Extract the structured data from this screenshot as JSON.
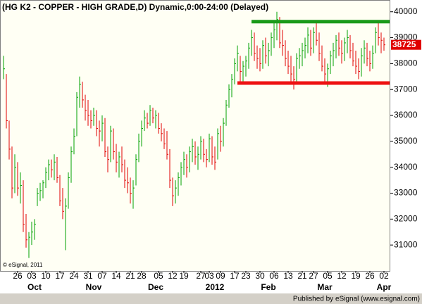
{
  "chart_data": {
    "type": "hlc",
    "title": "(HG K2 - COPPER - HIGH GRADE,D) Dynamic,0:00-24:00 (Delayed)",
    "watermark": "© eSignal, 2011",
    "footer": "Published by eSignal (www.esignal.com)",
    "categories": [
      null,
      null,
      null,
      null,
      null,
      "26",
      null,
      null,
      null,
      null,
      "03",
      null,
      null,
      null,
      null,
      "10",
      null,
      null,
      null,
      null,
      "17",
      null,
      null,
      null,
      null,
      "24",
      null,
      null,
      null,
      null,
      "31",
      null,
      null,
      null,
      null,
      "07",
      null,
      null,
      null,
      null,
      "14",
      null,
      null,
      null,
      null,
      "21",
      null,
      null,
      null,
      "28",
      null,
      null,
      null,
      null,
      null,
      "05",
      null,
      null,
      null,
      null,
      "12",
      null,
      null,
      null,
      "19",
      null,
      null,
      null,
      null,
      null,
      "27",
      null,
      null,
      "03",
      null,
      null,
      null,
      "09",
      null,
      null,
      null,
      null,
      "17",
      null,
      null,
      null,
      "23",
      null,
      null,
      null,
      null,
      "30",
      null,
      null,
      null,
      null,
      "06",
      null,
      null,
      null,
      null,
      "13",
      null,
      null,
      null,
      null,
      "21",
      null,
      null,
      null,
      "27",
      null,
      null,
      null,
      null,
      "05",
      null,
      null,
      null,
      null,
      "12",
      null,
      null,
      null,
      null,
      "19",
      null,
      null,
      null,
      null,
      "26",
      null,
      null,
      null,
      null,
      "02"
    ],
    "category_groups": [
      null,
      null,
      null,
      null,
      null,
      null,
      null,
      null,
      null,
      null,
      null,
      "Oct",
      null,
      null,
      null,
      null,
      null,
      null,
      null,
      null,
      null,
      null,
      null,
      null,
      null,
      null,
      null,
      null,
      null,
      null,
      null,
      null,
      "Nov",
      null,
      null,
      null,
      null,
      null,
      null,
      null,
      null,
      null,
      null,
      null,
      null,
      null,
      null,
      null,
      null,
      null,
      null,
      null,
      null,
      null,
      "Dec",
      null,
      null,
      null,
      null,
      null,
      null,
      null,
      null,
      null,
      null,
      null,
      null,
      null,
      null,
      null,
      null,
      null,
      null,
      null,
      null,
      "2012",
      null,
      null,
      null,
      null,
      null,
      null,
      null,
      null,
      null,
      null,
      null,
      null,
      null,
      null,
      null,
      null,
      null,
      null,
      "Feb",
      null,
      null,
      null,
      null,
      null,
      null,
      null,
      null,
      null,
      null,
      null,
      null,
      null,
      null,
      null,
      null,
      null,
      null,
      null,
      "Mar",
      null,
      null,
      null,
      null,
      null,
      null,
      null,
      null,
      null,
      null,
      null,
      null,
      null,
      null,
      null,
      null,
      null,
      null,
      null,
      null,
      "Apr"
    ],
    "high": [
      38300,
      37600,
      35800,
      34800,
      34500,
      34200,
      33800,
      33500,
      32200,
      31500,
      31900,
      32000,
      33200,
      33400,
      33500,
      34000,
      34300,
      34300,
      34500,
      34400,
      33700,
      33200,
      32800,
      33800,
      34800,
      35500,
      36900,
      37500,
      37300,
      36800,
      36600,
      36200,
      36300,
      36200,
      35800,
      36000,
      35900,
      34800,
      35600,
      35500,
      34900,
      34600,
      34800,
      34300,
      34000,
      33600,
      33500,
      34500,
      35300,
      35800,
      36200,
      36100,
      36400,
      36300,
      36200,
      36100,
      35700,
      35500,
      35400,
      34700,
      33600,
      33500,
      33800,
      34200,
      34600,
      34500,
      34800,
      35100,
      35000,
      34800,
      35200,
      35100,
      34700,
      35300,
      35200,
      34800,
      35500,
      35600,
      35900,
      36600,
      37200,
      37600,
      38200,
      38700,
      38300,
      38100,
      38300,
      38800,
      39300,
      39200,
      38700,
      38600,
      38900,
      39000,
      38800,
      39200,
      39600,
      40000,
      39800,
      39300,
      38900,
      38500,
      38300,
      37900,
      38400,
      38600,
      38800,
      39000,
      39400,
      39300,
      39400,
      39600,
      39200,
      38700,
      38200,
      38000,
      38500,
      38800,
      39100,
      39200,
      38900,
      39000,
      39300,
      39100,
      38800,
      38500,
      38200,
      38600,
      38900,
      38800,
      38500,
      38700,
      39400,
      39600,
      39200,
      39000
    ],
    "low": [
      37400,
      35500,
      34300,
      32800,
      33000,
      32900,
      32600,
      31500,
      30900,
      30500,
      31000,
      31200,
      32500,
      32700,
      32800,
      33200,
      33500,
      33600,
      33500,
      33400,
      32500,
      32000,
      30800,
      32400,
      33400,
      34500,
      35200,
      36300,
      36300,
      35800,
      35600,
      35500,
      35600,
      35200,
      34800,
      35000,
      34400,
      33800,
      34200,
      34300,
      33800,
      33600,
      33800,
      33200,
      33000,
      32600,
      32400,
      33300,
      34200,
      34800,
      35400,
      35500,
      35600,
      35700,
      35500,
      35300,
      35000,
      34700,
      34300,
      33200,
      32500,
      32600,
      32900,
      33300,
      33700,
      33600,
      33800,
      34200,
      34100,
      33900,
      34300,
      34200,
      34000,
      34200,
      34100,
      33900,
      34300,
      34600,
      34800,
      35600,
      36300,
      36700,
      37200,
      37700,
      37300,
      37200,
      37500,
      37800,
      38300,
      38100,
      37800,
      37700,
      37800,
      38000,
      37900,
      38300,
      38600,
      38900,
      38600,
      38300,
      37900,
      37600,
      37300,
      37000,
      37300,
      37800,
      37900,
      38200,
      38400,
      38300,
      38400,
      38700,
      38100,
      37700,
      37300,
      37100,
      37600,
      37900,
      38200,
      38300,
      38000,
      38100,
      38400,
      38200,
      37900,
      37600,
      37400,
      37500,
      38000,
      37900,
      37700,
      37800,
      38400,
      38700,
      38400,
      38500
    ],
    "close": [
      37800,
      35800,
      34700,
      33200,
      34000,
      33200,
      33300,
      31800,
      31200,
      31300,
      31500,
      31800,
      33000,
      33100,
      33400,
      33800,
      34100,
      33900,
      34200,
      33600,
      32700,
      32300,
      32500,
      33600,
      34600,
      35200,
      36700,
      37200,
      36600,
      36200,
      36000,
      35800,
      36000,
      35500,
      35400,
      35700,
      34600,
      34300,
      35400,
      34600,
      34200,
      34400,
      34100,
      33500,
      33400,
      33000,
      33200,
      34300,
      35000,
      35500,
      35900,
      35700,
      36200,
      35900,
      36000,
      35500,
      35300,
      34900,
      34500,
      33500,
      32900,
      33200,
      33600,
      34000,
      34300,
      34000,
      34600,
      34800,
      34400,
      34500,
      35000,
      34500,
      34300,
      35100,
      34400,
      34200,
      35300,
      35000,
      35700,
      36400,
      37000,
      37400,
      38000,
      38400,
      37700,
      37900,
      38100,
      38600,
      39000,
      38400,
      38200,
      38000,
      38700,
      38300,
      38500,
      39000,
      39300,
      39700,
      38800,
      38700,
      38200,
      37900,
      37600,
      37400,
      38200,
      38300,
      38500,
      38700,
      39100,
      38600,
      39200,
      38900,
      38400,
      37900,
      37600,
      37800,
      38300,
      38500,
      38900,
      38600,
      38400,
      38800,
      39000,
      38500,
      38100,
      37900,
      37700,
      38300,
      38600,
      38200,
      38000,
      38400,
      39200,
      39000,
      38900,
      38725
    ],
    "up_color": "#00a000",
    "down_color": "#e00000",
    "ylim": [
      30000,
      40400
    ],
    "yticks": [
      31000,
      32000,
      33000,
      34000,
      35000,
      36000,
      37000,
      38000,
      39000,
      40000
    ],
    "levels": [
      {
        "value": 39620,
        "color": "#1a9a1a",
        "from_index": 88
      },
      {
        "value": 37250,
        "color": "#ee1111",
        "from_index": 83
      }
    ],
    "last_value": 38725,
    "last_value_color": "#e00000"
  }
}
